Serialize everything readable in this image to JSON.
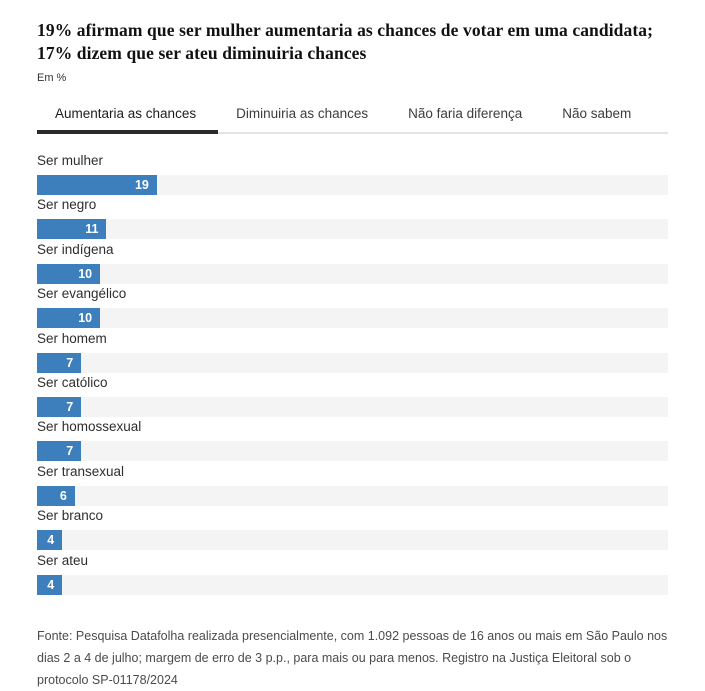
{
  "header": {
    "title": "19% afirmam que ser mulher aumentaria as chances de votar em uma candidata; 17% dizem que ser ateu diminuiria chances",
    "unit_label": "Em %"
  },
  "tabs": {
    "items": [
      {
        "label": "Aumentaria as chances",
        "active": true
      },
      {
        "label": "Diminuiria as chances",
        "active": false
      },
      {
        "label": "Não faria diferença",
        "active": false
      },
      {
        "label": "Não sabem",
        "active": false
      }
    ]
  },
  "chart_data": {
    "type": "bar",
    "orientation": "horizontal",
    "title": "Aumentaria as chances",
    "unit": "%",
    "categories": [
      "Ser mulher",
      "Ser negro",
      "Ser indígena",
      "Ser evangélico",
      "Ser homem",
      "Ser católico",
      "Ser homossexual",
      "Ser transexual",
      "Ser branco",
      "Ser ateu"
    ],
    "values": [
      19,
      11,
      10,
      10,
      7,
      7,
      7,
      6,
      4,
      4
    ],
    "xlim": [
      0,
      100
    ],
    "grid": false,
    "legend": false,
    "data_labels_position": "inside-end",
    "bar_color": "#3d7ebd",
    "track_color": "#f4f4f4"
  },
  "footer": {
    "source": "Fonte: Pesquisa Datafolha realizada presencialmente, com 1.092 pessoas de 16 anos ou mais em São Paulo nos dias 2 a 4 de julho; margem de erro de 3 p.p., para mais ou para menos. Registro na Justiça Eleitoral sob o protocolo SP-01178/2024"
  },
  "colors": {
    "accent_blue": "#3d7ebd",
    "track_gray": "#f4f4f4",
    "active_tab_underline": "#2b2b2b",
    "tab_divider": "#e4e4e4"
  }
}
